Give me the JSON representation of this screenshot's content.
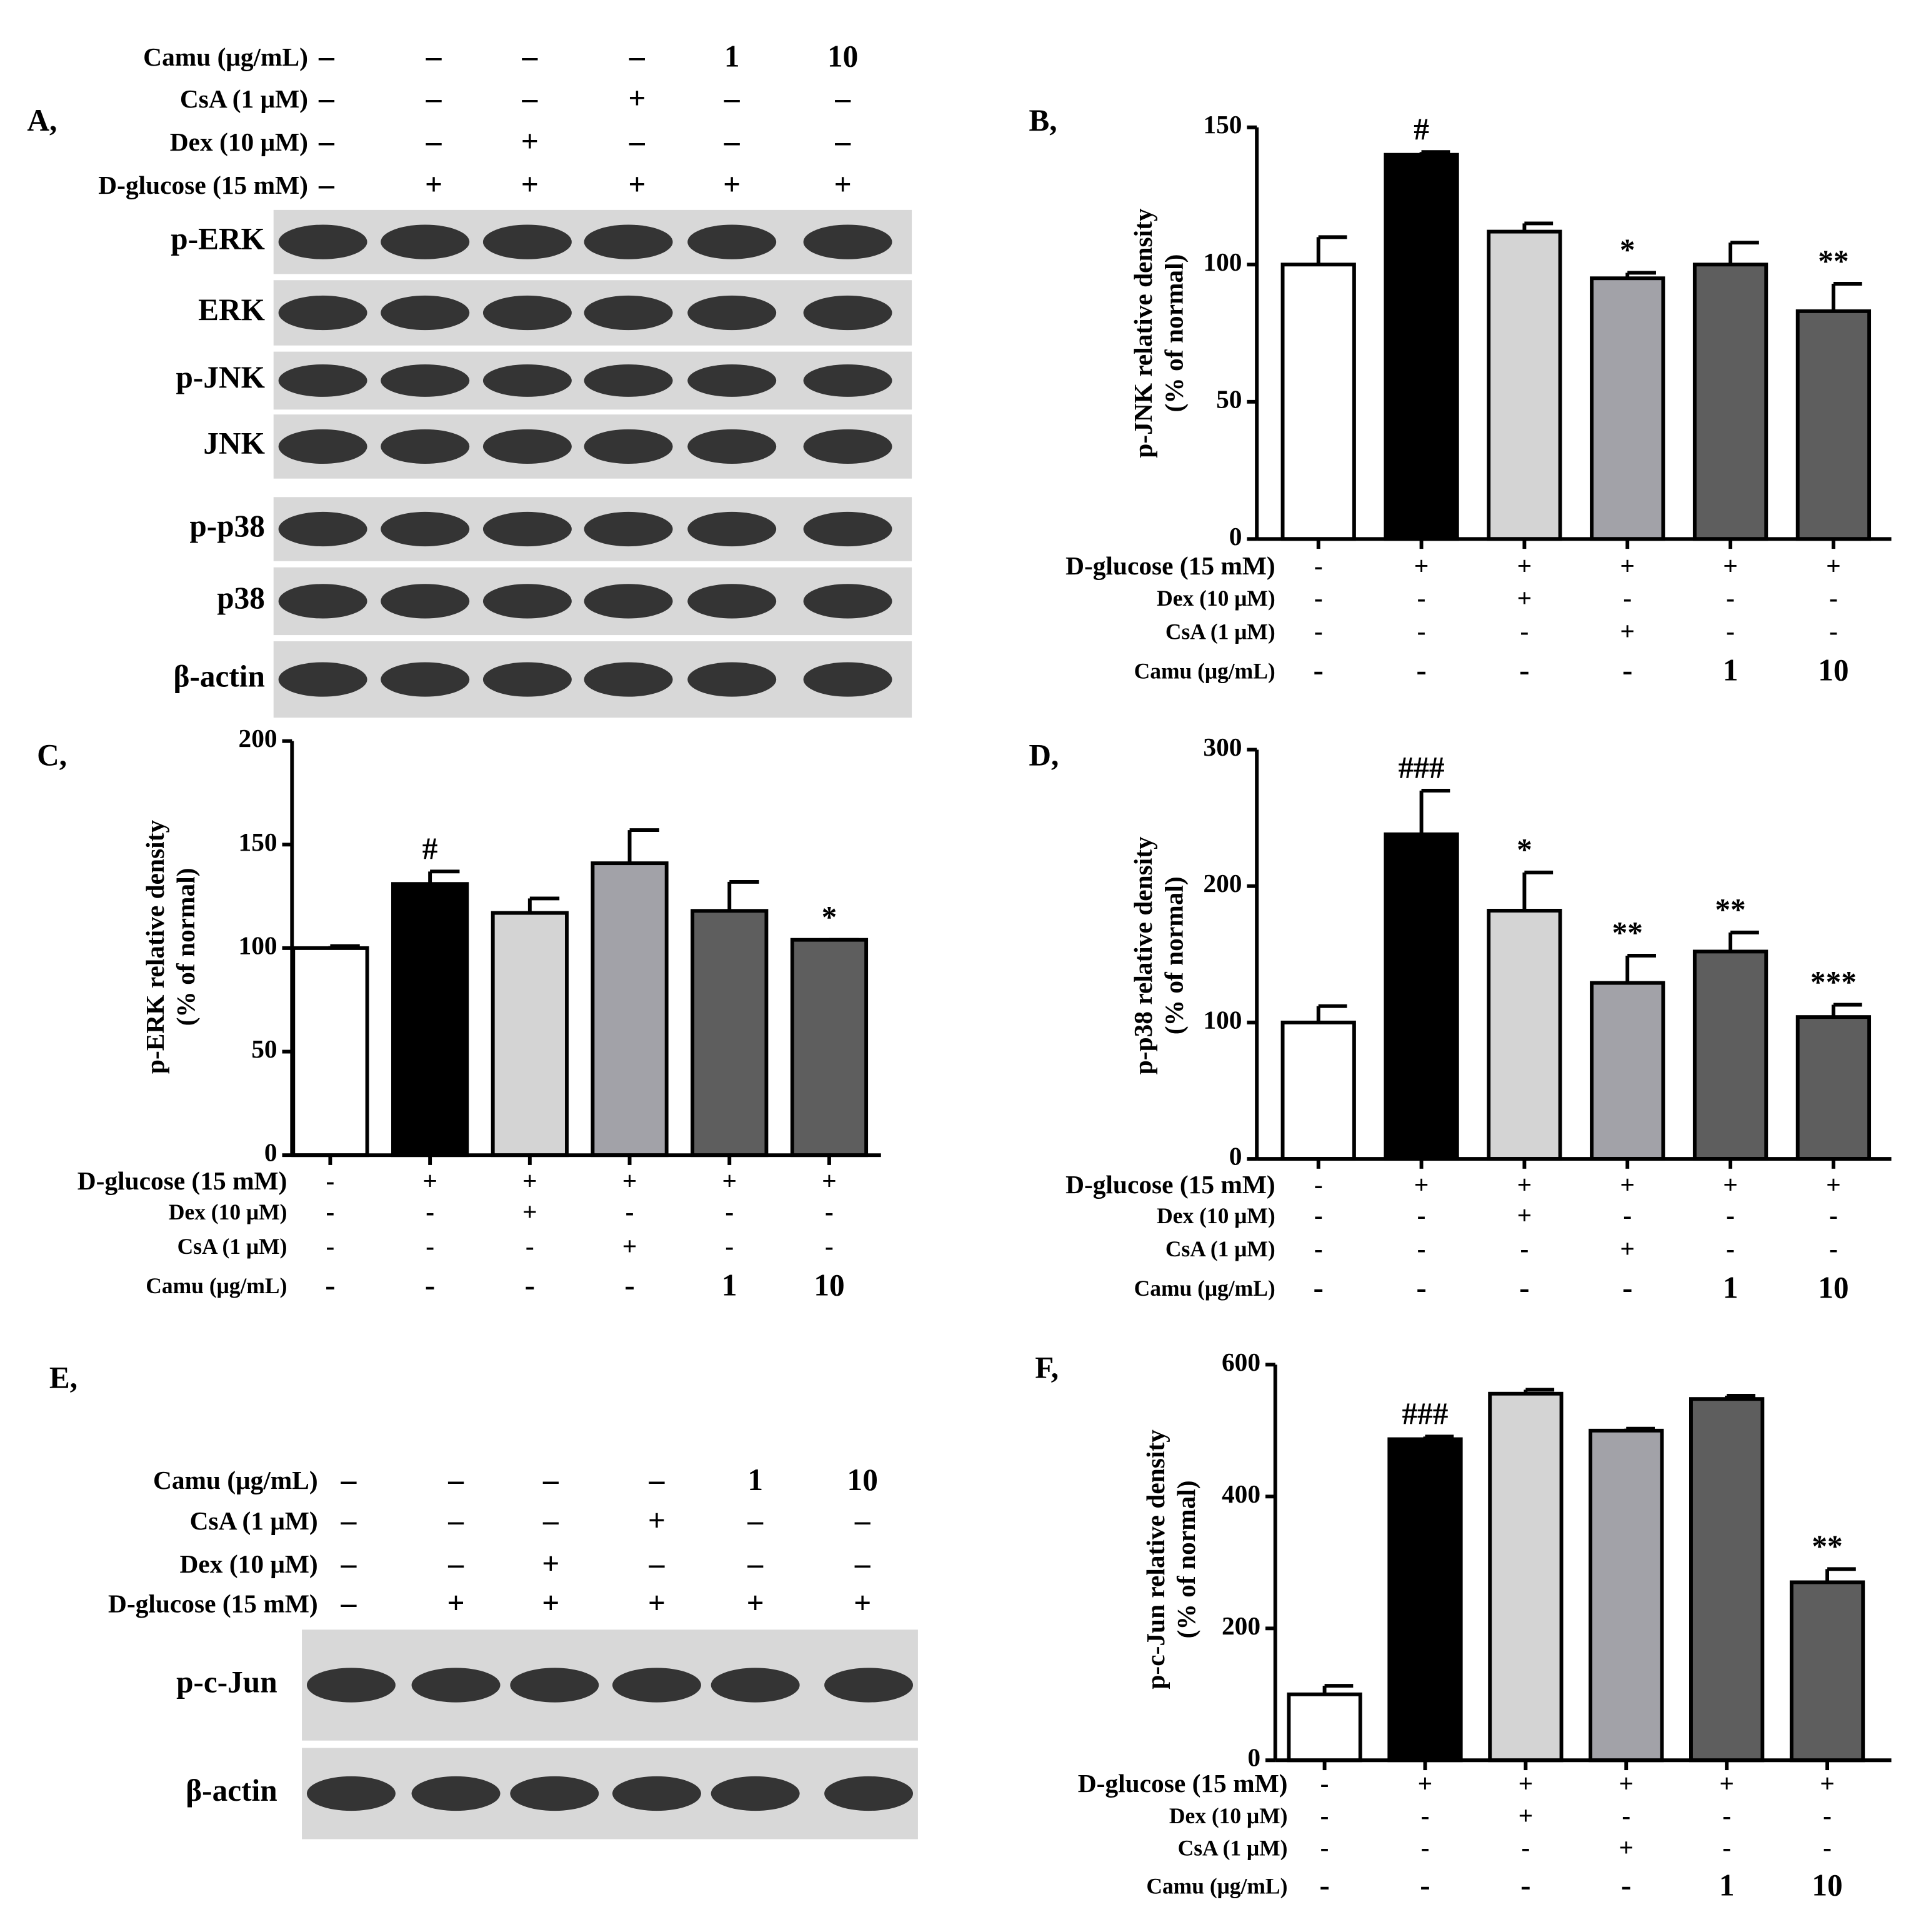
{
  "chart_data": [
    {
      "type": "bar",
      "label": "B,",
      "ylabel": [
        "p-JNK relative density",
        "(% of normal)"
      ],
      "ylim": [
        0,
        150
      ],
      "yticks": [
        0,
        50,
        100,
        150
      ],
      "values": [
        100,
        140,
        112,
        95,
        100,
        83
      ],
      "errors": [
        10,
        1,
        3,
        2,
        8,
        10
      ],
      "annotations": [
        null,
        "#",
        null,
        "*",
        null,
        "**"
      ],
      "colors": [
        "#ffffff",
        "#000000",
        "#d4d4d4",
        "#a2a2a8",
        "#5e5e5e",
        "#5e5e5e"
      ],
      "treatments": [
        {
          "label": "D-glucose (15 mM)",
          "values": [
            "-",
            "+",
            "+",
            "+",
            "+",
            "+"
          ]
        },
        {
          "label": "Dex (10 μM)",
          "values": [
            "-",
            "-",
            "+",
            "-",
            "-",
            "-"
          ]
        },
        {
          "label": "CsA (1 μM)",
          "values": [
            "-",
            "-",
            "-",
            "+",
            "-",
            "-"
          ]
        },
        {
          "label": "Camu (μg/mL)",
          "values": [
            "-",
            "-",
            "-",
            "-",
            "1",
            "10"
          ]
        }
      ]
    },
    {
      "type": "bar",
      "label": "C,",
      "ylabel": [
        "p-ERK relative density",
        "(% of normal)"
      ],
      "ylim": [
        0,
        200
      ],
      "yticks": [
        0,
        50,
        100,
        150,
        200
      ],
      "values": [
        100,
        131,
        117,
        141,
        118,
        104
      ],
      "errors": [
        1,
        6,
        7,
        16,
        14,
        0
      ],
      "annotations": [
        null,
        "#",
        null,
        null,
        null,
        "*"
      ],
      "colors": [
        "#ffffff",
        "#000000",
        "#d4d4d4",
        "#a2a2a8",
        "#5e5e5e",
        "#5e5e5e"
      ],
      "treatments": [
        {
          "label": "D-glucose (15 mM)",
          "values": [
            "-",
            "+",
            "+",
            "+",
            "+",
            "+"
          ]
        },
        {
          "label": "Dex (10 μM)",
          "values": [
            "-",
            "-",
            "+",
            "-",
            "-",
            "-"
          ]
        },
        {
          "label": "CsA (1 μM)",
          "values": [
            "-",
            "-",
            "-",
            "+",
            "-",
            "-"
          ]
        },
        {
          "label": "Camu (μg/mL)",
          "values": [
            "-",
            "-",
            "-",
            "-",
            "1",
            "10"
          ]
        }
      ]
    },
    {
      "type": "bar",
      "label": "D,",
      "ylabel": [
        "p-p38 relative density",
        "(% of normal)"
      ],
      "ylim": [
        0,
        300
      ],
      "yticks": [
        0,
        100,
        200,
        300
      ],
      "values": [
        100,
        238,
        182,
        129,
        152,
        104
      ],
      "errors": [
        12,
        32,
        28,
        20,
        14,
        9
      ],
      "annotations": [
        null,
        "###",
        "*",
        "**",
        "**",
        "***"
      ],
      "colors": [
        "#ffffff",
        "#000000",
        "#d4d4d4",
        "#a2a2a8",
        "#5e5e5e",
        "#5e5e5e"
      ],
      "treatments": [
        {
          "label": "D-glucose (15 mM)",
          "values": [
            "-",
            "+",
            "+",
            "+",
            "+",
            "+"
          ]
        },
        {
          "label": "Dex (10 μM)",
          "values": [
            "-",
            "-",
            "+",
            "-",
            "-",
            "-"
          ]
        },
        {
          "label": "CsA (1 μM)",
          "values": [
            "-",
            "-",
            "-",
            "+",
            "-",
            "-"
          ]
        },
        {
          "label": "Camu (μg/mL)",
          "values": [
            "-",
            "-",
            "-",
            "-",
            "1",
            "10"
          ]
        }
      ]
    },
    {
      "type": "bar",
      "label": "F,",
      "ylabel": [
        "p-c-Jun relative density",
        "(% of normal)"
      ],
      "ylim": [
        0,
        600
      ],
      "yticks": [
        0,
        200,
        400,
        600
      ],
      "values": [
        100,
        487,
        556,
        500,
        548,
        270
      ],
      "errors": [
        13,
        4,
        6,
        3,
        5,
        20
      ],
      "annotations": [
        null,
        "###",
        null,
        null,
        null,
        "**"
      ],
      "colors": [
        "#ffffff",
        "#000000",
        "#d4d4d4",
        "#a2a2a8",
        "#5e5e5e",
        "#5e5e5e"
      ],
      "treatments": [
        {
          "label": "D-glucose (15 mM)",
          "values": [
            "-",
            "+",
            "+",
            "+",
            "+",
            "+"
          ]
        },
        {
          "label": "Dex (10 μM)",
          "values": [
            "-",
            "-",
            "+",
            "-",
            "-",
            "-"
          ]
        },
        {
          "label": "CsA (1 μM)",
          "values": [
            "-",
            "-",
            "-",
            "+",
            "-",
            "-"
          ]
        },
        {
          "label": "Camu (μg/mL)",
          "values": [
            "-",
            "-",
            "-",
            "-",
            "1",
            "10"
          ]
        }
      ]
    }
  ],
  "blots": [
    {
      "label": "A,",
      "treatments": [
        {
          "label": "Camu (μg/mL)",
          "values": [
            "–",
            "–",
            "–",
            "–",
            "1",
            "10"
          ]
        },
        {
          "label": "CsA (1 μM)",
          "values": [
            "–",
            "–",
            "–",
            "+",
            "–",
            "–"
          ]
        },
        {
          "label": "Dex (10 μM)",
          "values": [
            "–",
            "–",
            "+",
            "–",
            "–",
            "–"
          ]
        },
        {
          "label": "D-glucose (15 mM)",
          "values": [
            "–",
            "+",
            "+",
            "+",
            "+",
            "+"
          ]
        }
      ],
      "bands": [
        "p-ERK",
        "ERK",
        "p-JNK",
        "JNK",
        "p-p38",
        "p38",
        "β-actin"
      ]
    },
    {
      "label": "E,",
      "treatments": [
        {
          "label": "Camu (μg/mL)",
          "values": [
            "–",
            "–",
            "–",
            "–",
            "1",
            "10"
          ]
        },
        {
          "label": "CsA (1 μM)",
          "values": [
            "–",
            "–",
            "–",
            "+",
            "–",
            "–"
          ]
        },
        {
          "label": "Dex (10 μM)",
          "values": [
            "–",
            "–",
            "+",
            "–",
            "–",
            "–"
          ]
        },
        {
          "label": "D-glucose (15 mM)",
          "values": [
            "–",
            "+",
            "+",
            "+",
            "+",
            "+"
          ]
        }
      ],
      "bands": [
        "p-c-Jun",
        "β-actin"
      ]
    }
  ]
}
